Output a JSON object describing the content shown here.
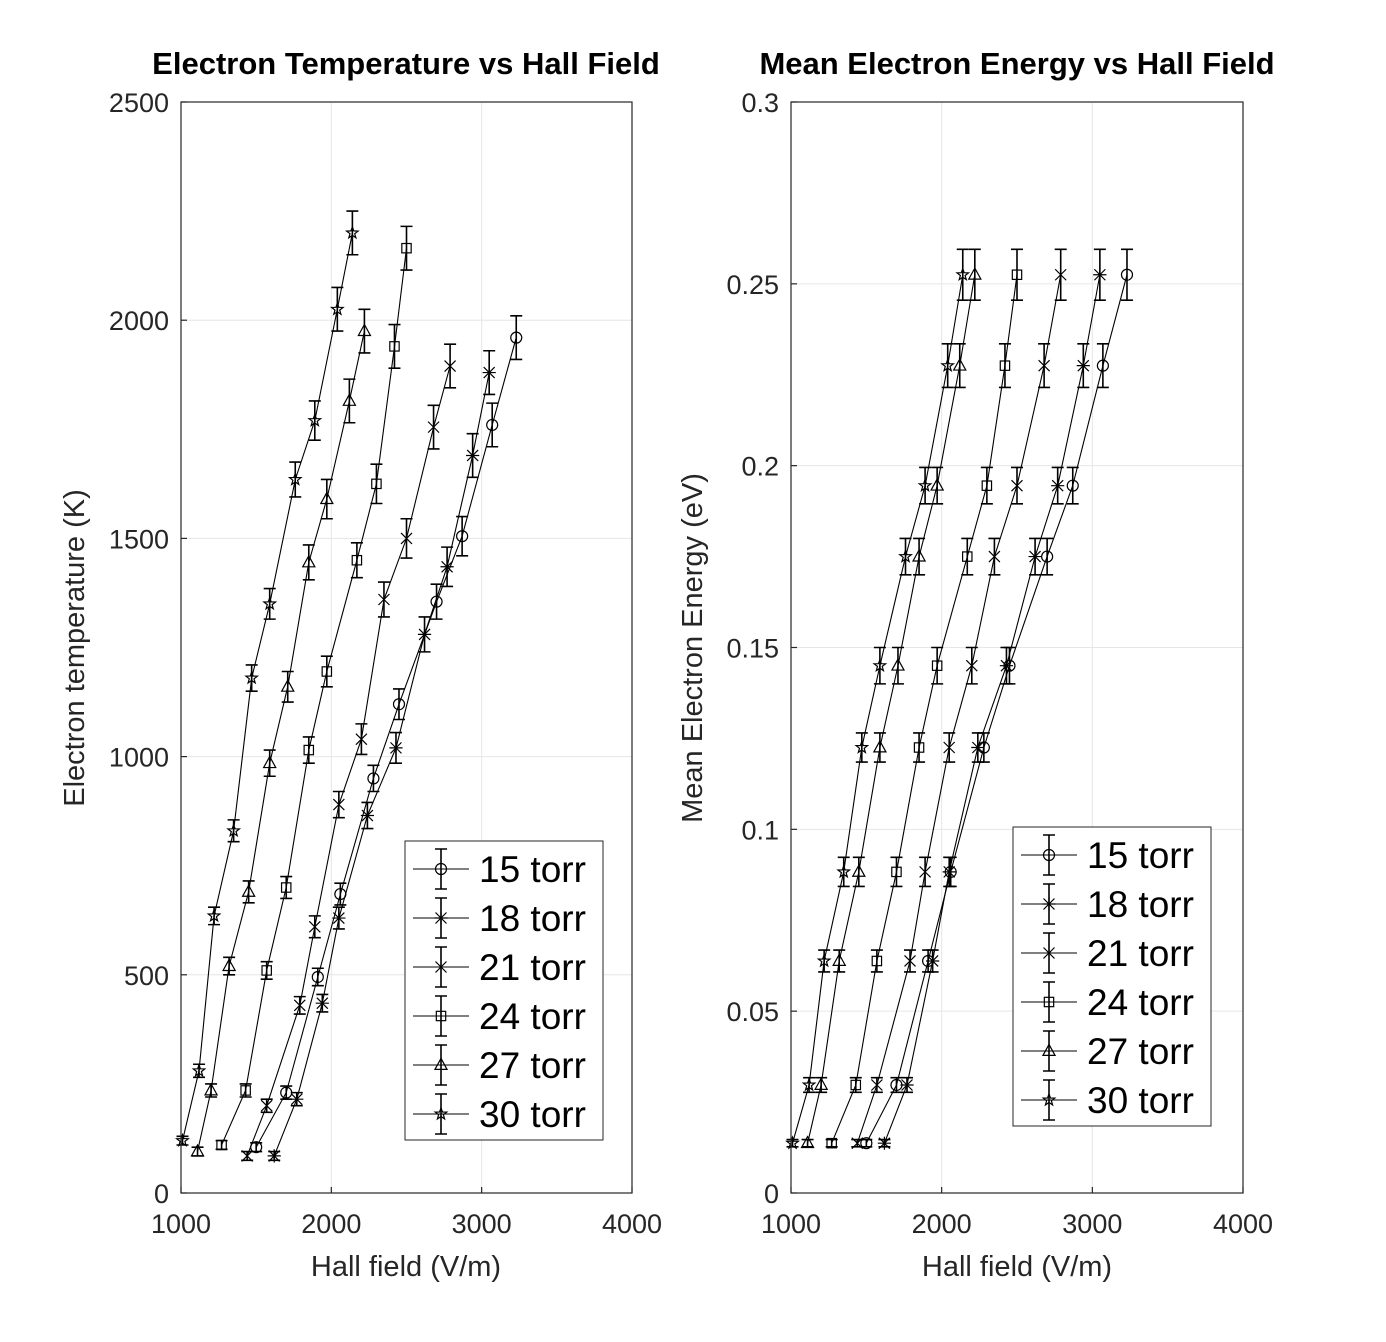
{
  "chart_data": [
    {
      "type": "line",
      "title": "Electron Temperature vs Hall Field",
      "xlabel": "Hall field (V/m)",
      "ylabel": "Electron temperature (K)",
      "xlim": [
        1000,
        4000
      ],
      "ylim": [
        0,
        2500
      ],
      "xticks": [
        "1000",
        "2000",
        "3000",
        "4000"
      ],
      "yticks": [
        "0",
        "500",
        "1000",
        "1500",
        "2000",
        "2500"
      ],
      "grid": true,
      "legend_position": "lower-right",
      "series": [
        {
          "name": "15 torr",
          "marker": "circle",
          "x": [
            1500,
            1700,
            1910,
            2060,
            2280,
            2450,
            2700,
            2870,
            3070,
            3230
          ],
          "y": [
            105,
            230,
            495,
            685,
            950,
            1120,
            1355,
            1505,
            1760,
            1960
          ],
          "err": [
            10,
            15,
            20,
            25,
            30,
            35,
            40,
            45,
            50,
            50
          ]
        },
        {
          "name": "18 torr",
          "marker": "asterisk",
          "x": [
            1620,
            1770,
            1940,
            2050,
            2240,
            2430,
            2620,
            2770,
            2940,
            3050
          ],
          "y": [
            85,
            215,
            435,
            630,
            865,
            1020,
            1280,
            1435,
            1690,
            1880
          ],
          "err": [
            10,
            15,
            20,
            25,
            30,
            35,
            40,
            45,
            50,
            50
          ]
        },
        {
          "name": "21 torr",
          "marker": "x",
          "x": [
            1440,
            1570,
            1790,
            1890,
            2050,
            2200,
            2350,
            2500,
            2680,
            2790
          ],
          "y": [
            85,
            200,
            430,
            610,
            890,
            1040,
            1360,
            1500,
            1755,
            1895
          ],
          "err": [
            10,
            15,
            20,
            25,
            30,
            35,
            40,
            45,
            50,
            50
          ]
        },
        {
          "name": "24 torr",
          "marker": "square",
          "x": [
            1270,
            1430,
            1570,
            1700,
            1850,
            1970,
            2170,
            2300,
            2420,
            2500
          ],
          "y": [
            110,
            235,
            510,
            700,
            1015,
            1195,
            1450,
            1625,
            1940,
            2165
          ],
          "err": [
            10,
            15,
            20,
            25,
            30,
            35,
            40,
            45,
            50,
            50
          ]
        },
        {
          "name": "27 torr",
          "marker": "triangle",
          "x": [
            1110,
            1200,
            1320,
            1450,
            1590,
            1710,
            1850,
            1970,
            2120,
            2220
          ],
          "y": [
            95,
            235,
            520,
            690,
            985,
            1160,
            1445,
            1590,
            1815,
            1975
          ],
          "err": [
            10,
            15,
            20,
            25,
            30,
            35,
            40,
            45,
            50,
            50
          ]
        },
        {
          "name": "30 torr",
          "marker": "pentagram",
          "x": [
            1010,
            1120,
            1220,
            1350,
            1470,
            1590,
            1760,
            1890,
            2040,
            2140
          ],
          "y": [
            120,
            280,
            635,
            830,
            1180,
            1350,
            1635,
            1770,
            2025,
            2200
          ],
          "err": [
            10,
            15,
            20,
            25,
            30,
            35,
            40,
            45,
            50,
            50
          ]
        }
      ]
    },
    {
      "type": "line",
      "title": "Mean Electron Energy vs Hall Field",
      "xlabel": "Hall field (V/m)",
      "ylabel": "Mean Electron Energy (eV)",
      "xlim": [
        1000,
        4000
      ],
      "ylim": [
        0,
        0.3
      ],
      "xticks": [
        "1000",
        "2000",
        "3000",
        "4000"
      ],
      "yticks": [
        "0",
        "0.05",
        "0.1",
        "0.15",
        "0.2",
        "0.25",
        "0.3"
      ],
      "grid": true,
      "legend_position": "lower-right",
      "series": [
        {
          "name": "15 torr",
          "marker": "circle",
          "x": [
            1500,
            1700,
            1910,
            2060,
            2280,
            2450,
            2700,
            2870,
            3070,
            3230
          ],
          "y": [
            0.0137,
            0.0297,
            0.0638,
            0.0883,
            0.1225,
            0.145,
            0.175,
            0.1945,
            0.2275,
            0.2525
          ],
          "err": [
            0.001,
            0.002,
            0.003,
            0.004,
            0.004,
            0.005,
            0.005,
            0.005,
            0.006,
            0.007
          ]
        },
        {
          "name": "18 torr",
          "marker": "asterisk",
          "x": [
            1620,
            1770,
            1940,
            2050,
            2240,
            2430,
            2620,
            2770,
            2940,
            3050
          ],
          "y": [
            0.0137,
            0.0297,
            0.0638,
            0.0883,
            0.1225,
            0.145,
            0.175,
            0.1945,
            0.2275,
            0.2525
          ],
          "err": [
            0.001,
            0.002,
            0.003,
            0.004,
            0.004,
            0.005,
            0.005,
            0.005,
            0.006,
            0.007
          ]
        },
        {
          "name": "21 torr",
          "marker": "x",
          "x": [
            1440,
            1570,
            1790,
            1890,
            2050,
            2200,
            2350,
            2500,
            2680,
            2790
          ],
          "y": [
            0.0137,
            0.0297,
            0.0638,
            0.0883,
            0.1225,
            0.145,
            0.175,
            0.1945,
            0.2275,
            0.2525
          ],
          "err": [
            0.001,
            0.002,
            0.003,
            0.004,
            0.004,
            0.005,
            0.005,
            0.005,
            0.006,
            0.007
          ]
        },
        {
          "name": "24 torr",
          "marker": "square",
          "x": [
            1270,
            1430,
            1570,
            1700,
            1850,
            1970,
            2170,
            2300,
            2420,
            2500
          ],
          "y": [
            0.0137,
            0.0297,
            0.0638,
            0.0883,
            0.1225,
            0.145,
            0.175,
            0.1945,
            0.2275,
            0.2525
          ],
          "err": [
            0.001,
            0.002,
            0.003,
            0.004,
            0.004,
            0.005,
            0.005,
            0.005,
            0.006,
            0.007
          ]
        },
        {
          "name": "27 torr",
          "marker": "triangle",
          "x": [
            1110,
            1200,
            1320,
            1450,
            1590,
            1710,
            1850,
            1970,
            2120,
            2220
          ],
          "y": [
            0.0137,
            0.0297,
            0.0638,
            0.0883,
            0.1225,
            0.145,
            0.175,
            0.1945,
            0.2275,
            0.2525
          ],
          "err": [
            0.001,
            0.002,
            0.003,
            0.004,
            0.004,
            0.005,
            0.005,
            0.005,
            0.006,
            0.007
          ]
        },
        {
          "name": "30 torr",
          "marker": "pentagram",
          "x": [
            1010,
            1120,
            1220,
            1350,
            1470,
            1590,
            1760,
            1890,
            2040,
            2140
          ],
          "y": [
            0.0137,
            0.0297,
            0.0638,
            0.0883,
            0.1225,
            0.145,
            0.175,
            0.1945,
            0.2275,
            0.2525
          ],
          "err": [
            0.001,
            0.002,
            0.003,
            0.004,
            0.004,
            0.005,
            0.005,
            0.005,
            0.006,
            0.007
          ]
        }
      ]
    }
  ]
}
